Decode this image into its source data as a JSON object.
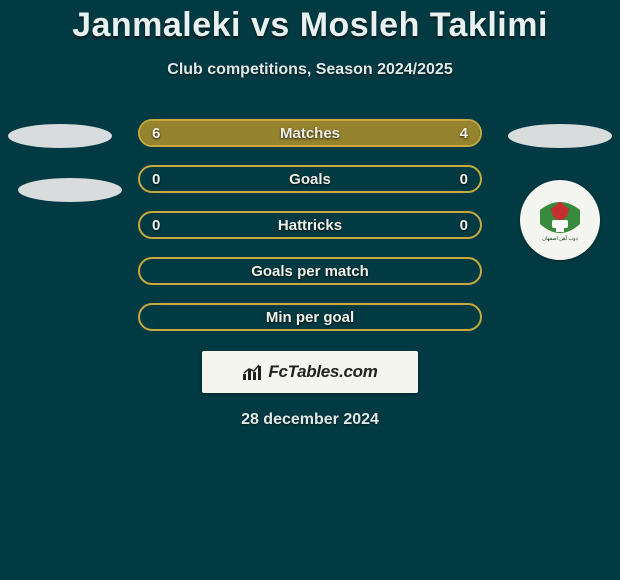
{
  "header": {
    "title": "Janmaleki vs Mosleh Taklimi",
    "subtitle": "Club competitions, Season 2024/2025"
  },
  "stats": {
    "rows": [
      {
        "label": "Matches",
        "left": "6",
        "right": "4",
        "left_fill_pct": 60,
        "right_fill_pct": 40,
        "show_values": true
      },
      {
        "label": "Goals",
        "left": "0",
        "right": "0",
        "left_fill_pct": 0,
        "right_fill_pct": 0,
        "show_values": true
      },
      {
        "label": "Hattricks",
        "left": "0",
        "right": "0",
        "left_fill_pct": 0,
        "right_fill_pct": 0,
        "show_values": true
      },
      {
        "label": "Goals per match",
        "left": "",
        "right": "",
        "left_fill_pct": 0,
        "right_fill_pct": 0,
        "show_values": false
      },
      {
        "label": "Min per goal",
        "left": "",
        "right": "",
        "left_fill_pct": 0,
        "right_fill_pct": 0,
        "show_values": false
      }
    ],
    "bar_border_color": "#c7a93e",
    "bar_fill_color": "#95832e"
  },
  "brand": {
    "text": "FcTables.com"
  },
  "date": "28 december 2024",
  "colors": {
    "background": "#013a42",
    "text": "#e8f0f0",
    "brand_bg": "#f5f5f0",
    "badge_bg": "#f4f4f0",
    "badge_green": "#3a8a3d",
    "badge_red": "#c42f2f",
    "badge_white": "#ffffff"
  }
}
